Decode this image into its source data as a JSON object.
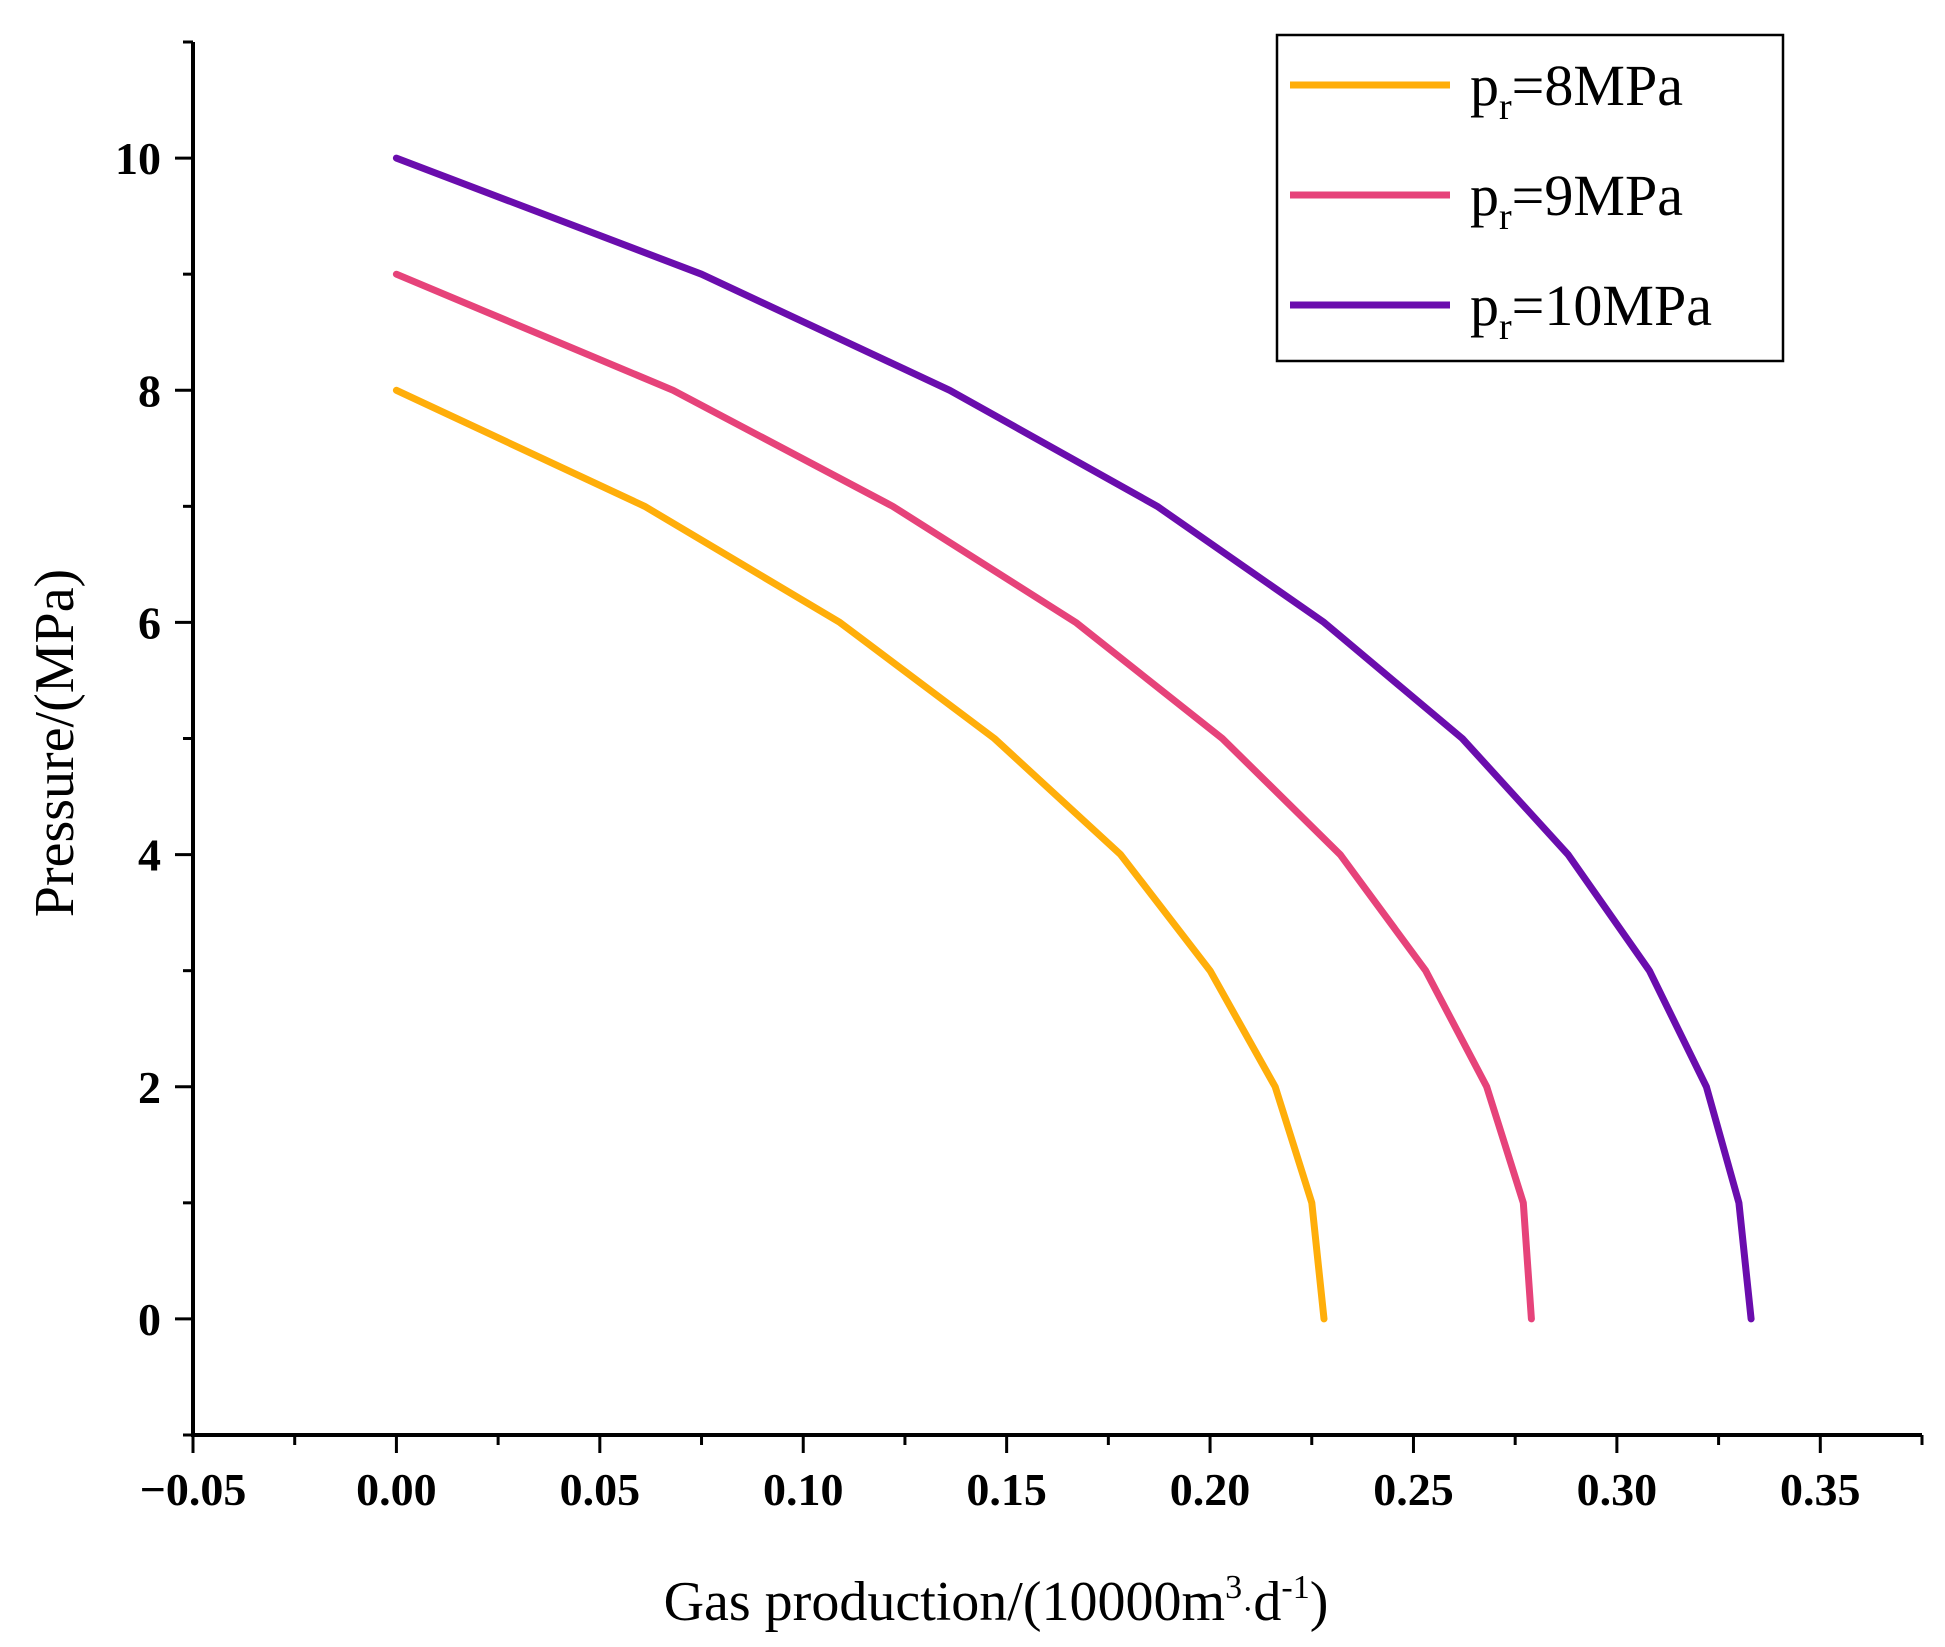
{
  "chart_data": {
    "type": "line",
    "title": "",
    "xlabel": {
      "main": "Gas production/(10000m",
      "sup1": "3",
      "dot": "·",
      "mid": "d",
      "sup2": "-1",
      "end": ")"
    },
    "ylabel": "Pressure/(MPa)",
    "xlim": [
      -0.05,
      0.375
    ],
    "ylim": [
      -1,
      11
    ],
    "x_ticks": [
      -0.05,
      0.0,
      0.05,
      0.1,
      0.15,
      0.2,
      0.25,
      0.3,
      0.35
    ],
    "x_tick_labels": [
      "−0.05",
      "0.00",
      "0.05",
      "0.10",
      "0.15",
      "0.20",
      "0.25",
      "0.30",
      "0.35"
    ],
    "y_ticks": [
      0,
      2,
      4,
      6,
      8,
      10
    ],
    "y_tick_labels": [
      "0",
      "2",
      "4",
      "6",
      "8",
      "10"
    ],
    "legend_position": "top-right",
    "series": [
      {
        "name": "p_r=8MPa",
        "legend": {
          "base": "p",
          "sub": "r",
          "rest": "=8MPa"
        },
        "color": "#FFAE0A",
        "points": [
          [
            0.0,
            8
          ],
          [
            0.061,
            7
          ],
          [
            0.109,
            6
          ],
          [
            0.147,
            5
          ],
          [
            0.178,
            4
          ],
          [
            0.2,
            3
          ],
          [
            0.216,
            2
          ],
          [
            0.225,
            1
          ],
          [
            0.228,
            0
          ]
        ]
      },
      {
        "name": "p_r=9MPa",
        "legend": {
          "base": "p",
          "sub": "r",
          "rest": "=9MPa"
        },
        "color": "#E6437A",
        "points": [
          [
            0.0,
            9
          ],
          [
            0.068,
            8
          ],
          [
            0.122,
            7
          ],
          [
            0.167,
            6
          ],
          [
            0.203,
            5
          ],
          [
            0.232,
            4
          ],
          [
            0.253,
            3
          ],
          [
            0.268,
            2
          ],
          [
            0.277,
            1
          ],
          [
            0.279,
            0
          ]
        ]
      },
      {
        "name": "p_r=10MPa",
        "legend": {
          "base": "p",
          "sub": "r",
          "rest": "=10MPa"
        },
        "color": "#6A0DAD",
        "points": [
          [
            0.0,
            10
          ],
          [
            0.075,
            9
          ],
          [
            0.136,
            8
          ],
          [
            0.187,
            7
          ],
          [
            0.228,
            6
          ],
          [
            0.262,
            5
          ],
          [
            0.288,
            4
          ],
          [
            0.308,
            3
          ],
          [
            0.322,
            2
          ],
          [
            0.33,
            1
          ],
          [
            0.333,
            0
          ]
        ]
      }
    ]
  }
}
